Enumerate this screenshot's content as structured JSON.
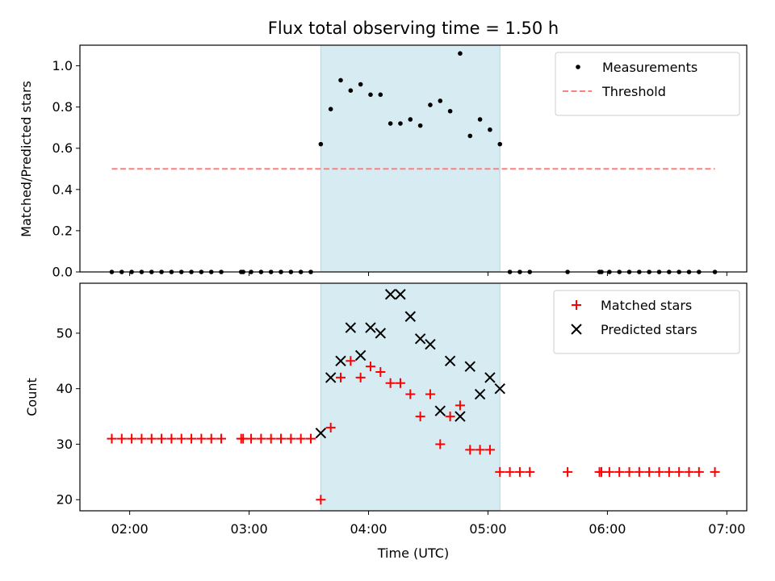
{
  "chart_data": [
    {
      "type": "scatter",
      "title": "Flux total observing time = 1.50 h",
      "ylabel": "Matched/Predicted stars",
      "xlabel": "",
      "ylim": [
        0,
        1.1
      ],
      "yticks": [
        "0.0",
        "0.2",
        "0.4",
        "0.6",
        "0.8",
        "1.0"
      ],
      "highlight_span": [
        "03:36",
        "05:06"
      ],
      "highlight_color": "#add8e6",
      "legend_position": "top-right",
      "series": [
        {
          "name": "Measurements",
          "marker": "dot",
          "color": "#000000",
          "points": [
            [
              "01:51",
              0
            ],
            [
              "01:56",
              0
            ],
            [
              "02:01",
              0
            ],
            [
              "02:06",
              0
            ],
            [
              "02:11",
              0
            ],
            [
              "02:16",
              0
            ],
            [
              "02:21",
              0
            ],
            [
              "02:26",
              0
            ],
            [
              "02:31",
              0
            ],
            [
              "02:36",
              0
            ],
            [
              "02:41",
              0
            ],
            [
              "02:46",
              0
            ],
            [
              "02:56",
              0
            ],
            [
              "02:57",
              0
            ],
            [
              "03:01",
              0
            ],
            [
              "03:06",
              0
            ],
            [
              "03:11",
              0
            ],
            [
              "03:16",
              0
            ],
            [
              "03:21",
              0
            ],
            [
              "03:26",
              0
            ],
            [
              "03:31",
              0
            ],
            [
              "03:36",
              0.62
            ],
            [
              "03:41",
              0.79
            ],
            [
              "03:46",
              0.93
            ],
            [
              "03:51",
              0.88
            ],
            [
              "03:56",
              0.91
            ],
            [
              "04:01",
              0.86
            ],
            [
              "04:06",
              0.86
            ],
            [
              "04:11",
              0.72
            ],
            [
              "04:16",
              0.72
            ],
            [
              "04:21",
              0.74
            ],
            [
              "04:26",
              0.71
            ],
            [
              "04:31",
              0.81
            ],
            [
              "04:36",
              0.83
            ],
            [
              "04:41",
              0.78
            ],
            [
              "04:46",
              1.06
            ],
            [
              "04:51",
              0.66
            ],
            [
              "04:56",
              0.74
            ],
            [
              "05:01",
              0.69
            ],
            [
              "05:06",
              0.62
            ],
            [
              "05:11",
              0
            ],
            [
              "05:16",
              0
            ],
            [
              "05:21",
              0
            ],
            [
              "05:40",
              0
            ],
            [
              "05:56",
              0
            ],
            [
              "05:57",
              0
            ],
            [
              "06:01",
              0
            ],
            [
              "06:06",
              0
            ],
            [
              "06:11",
              0
            ],
            [
              "06:16",
              0
            ],
            [
              "06:21",
              0
            ],
            [
              "06:26",
              0
            ],
            [
              "06:31",
              0
            ],
            [
              "06:36",
              0
            ],
            [
              "06:41",
              0
            ],
            [
              "06:46",
              0
            ],
            [
              "06:54",
              0
            ]
          ]
        },
        {
          "name": "Threshold",
          "marker": "dashed-line",
          "color": "#ff7f7f",
          "points": [
            [
              "01:51",
              0.5
            ],
            [
              "06:54",
              0.5
            ]
          ]
        }
      ]
    },
    {
      "type": "scatter",
      "title": "",
      "ylabel": "Count",
      "xlabel": "Time (UTC)",
      "ylim": [
        18,
        59
      ],
      "yticks": [
        "20",
        "30",
        "40",
        "50"
      ],
      "xlim": [
        "01:35",
        "07:10"
      ],
      "xticks": [
        "02:00",
        "03:00",
        "04:00",
        "05:00",
        "06:00",
        "07:00"
      ],
      "highlight_span": [
        "03:36",
        "05:06"
      ],
      "highlight_color": "#add8e6",
      "legend_position": "top-right",
      "series": [
        {
          "name": "Matched stars",
          "marker": "plus",
          "color": "#ff0000",
          "points": [
            [
              "01:51",
              31
            ],
            [
              "01:56",
              31
            ],
            [
              "02:01",
              31
            ],
            [
              "02:06",
              31
            ],
            [
              "02:11",
              31
            ],
            [
              "02:16",
              31
            ],
            [
              "02:21",
              31
            ],
            [
              "02:26",
              31
            ],
            [
              "02:31",
              31
            ],
            [
              "02:36",
              31
            ],
            [
              "02:41",
              31
            ],
            [
              "02:46",
              31
            ],
            [
              "02:56",
              31
            ],
            [
              "02:57",
              31
            ],
            [
              "03:01",
              31
            ],
            [
              "03:06",
              31
            ],
            [
              "03:11",
              31
            ],
            [
              "03:16",
              31
            ],
            [
              "03:21",
              31
            ],
            [
              "03:26",
              31
            ],
            [
              "03:31",
              31
            ],
            [
              "03:36",
              20
            ],
            [
              "03:41",
              33
            ],
            [
              "03:46",
              42
            ],
            [
              "03:51",
              45
            ],
            [
              "03:56",
              42
            ],
            [
              "04:01",
              44
            ],
            [
              "04:06",
              43
            ],
            [
              "04:11",
              41
            ],
            [
              "04:16",
              41
            ],
            [
              "04:21",
              39
            ],
            [
              "04:26",
              35
            ],
            [
              "04:31",
              39
            ],
            [
              "04:36",
              30
            ],
            [
              "04:41",
              35
            ],
            [
              "04:46",
              37
            ],
            [
              "04:51",
              29
            ],
            [
              "04:56",
              29
            ],
            [
              "05:01",
              29
            ],
            [
              "05:06",
              25
            ],
            [
              "05:11",
              25
            ],
            [
              "05:16",
              25
            ],
            [
              "05:21",
              25
            ],
            [
              "05:40",
              25
            ],
            [
              "05:56",
              25
            ],
            [
              "05:57",
              25
            ],
            [
              "06:01",
              25
            ],
            [
              "06:06",
              25
            ],
            [
              "06:11",
              25
            ],
            [
              "06:16",
              25
            ],
            [
              "06:21",
              25
            ],
            [
              "06:26",
              25
            ],
            [
              "06:31",
              25
            ],
            [
              "06:36",
              25
            ],
            [
              "06:41",
              25
            ],
            [
              "06:46",
              25
            ],
            [
              "06:54",
              25
            ]
          ]
        },
        {
          "name": "Predicted stars",
          "marker": "x",
          "color": "#000000",
          "points": [
            [
              "03:36",
              32
            ],
            [
              "03:41",
              42
            ],
            [
              "03:46",
              45
            ],
            [
              "03:51",
              51
            ],
            [
              "03:56",
              46
            ],
            [
              "04:01",
              51
            ],
            [
              "04:06",
              50
            ],
            [
              "04:11",
              57
            ],
            [
              "04:16",
              57
            ],
            [
              "04:21",
              53
            ],
            [
              "04:26",
              49
            ],
            [
              "04:31",
              48
            ],
            [
              "04:36",
              36
            ],
            [
              "04:41",
              45
            ],
            [
              "04:46",
              35
            ],
            [
              "04:51",
              44
            ],
            [
              "04:56",
              39
            ],
            [
              "05:01",
              42
            ],
            [
              "05:06",
              40
            ]
          ]
        }
      ]
    }
  ]
}
